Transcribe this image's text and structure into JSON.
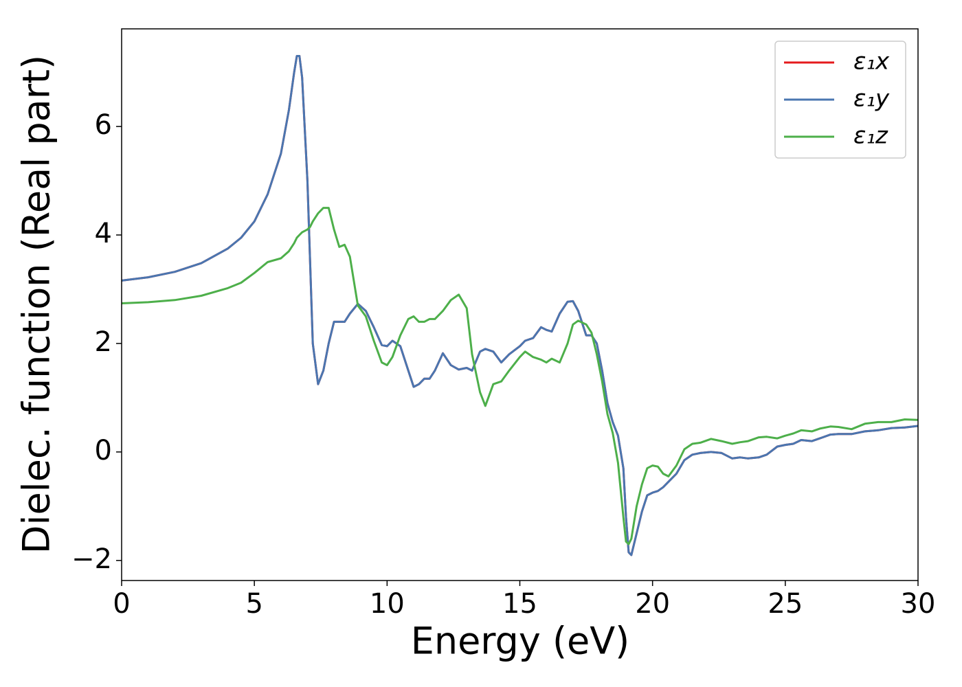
{
  "chart_data": {
    "type": "line",
    "xlabel": "Energy (eV)",
    "ylabel": "Dielec. function (Real part)",
    "x": [
      0,
      1,
      2,
      3,
      4,
      4.5,
      5,
      5.5,
      6,
      6.3,
      6.5,
      6.6,
      6.7,
      6.8,
      7.0,
      7.1,
      7.2,
      7.4,
      7.6,
      7.8,
      8.0,
      8.2,
      8.4,
      8.6,
      8.9,
      9.2,
      9.5,
      9.8,
      10.0,
      10.2,
      10.5,
      10.8,
      11.0,
      11.2,
      11.4,
      11.6,
      11.8,
      12.1,
      12.4,
      12.7,
      13.0,
      13.2,
      13.5,
      13.7,
      14.0,
      14.3,
      14.6,
      15.0,
      15.2,
      15.5,
      15.8,
      16.0,
      16.2,
      16.5,
      16.8,
      17.0,
      17.2,
      17.5,
      17.7,
      17.9,
      18.1,
      18.3,
      18.5,
      18.7,
      18.9,
      19.0,
      19.1,
      19.2,
      19.4,
      19.6,
      19.8,
      20.0,
      20.2,
      20.4,
      20.6,
      20.9,
      21.2,
      21.5,
      21.8,
      22.2,
      22.6,
      23.0,
      23.3,
      23.6,
      24.0,
      24.3,
      24.7,
      25.0,
      25.3,
      25.6,
      26.0,
      26.3,
      26.7,
      27.0,
      27.5,
      28.0,
      28.5,
      29.0,
      29.5,
      30.0
    ],
    "series": [
      {
        "name": "ε₁x",
        "color": "#e41a1c",
        "values": [
          3.16,
          3.22,
          3.32,
          3.48,
          3.75,
          3.95,
          4.25,
          4.75,
          5.5,
          6.3,
          7.0,
          7.3,
          7.3,
          6.9,
          5.0,
          3.5,
          2.0,
          1.25,
          1.5,
          2.0,
          2.4,
          2.4,
          2.4,
          2.55,
          2.73,
          2.6,
          2.3,
          1.97,
          1.95,
          2.05,
          1.95,
          1.5,
          1.2,
          1.25,
          1.35,
          1.35,
          1.5,
          1.82,
          1.6,
          1.52,
          1.55,
          1.5,
          1.85,
          1.9,
          1.85,
          1.65,
          1.8,
          1.95,
          2.05,
          2.1,
          2.3,
          2.25,
          2.22,
          2.55,
          2.77,
          2.78,
          2.6,
          2.15,
          2.15,
          2.0,
          1.5,
          0.9,
          0.55,
          0.3,
          -0.3,
          -1.2,
          -1.85,
          -1.9,
          -1.5,
          -1.1,
          -0.8,
          -0.75,
          -0.72,
          -0.65,
          -0.55,
          -0.4,
          -0.15,
          -0.05,
          -0.02,
          0.0,
          -0.02,
          -0.12,
          -0.1,
          -0.12,
          -0.1,
          -0.05,
          0.1,
          0.13,
          0.15,
          0.22,
          0.2,
          0.25,
          0.32,
          0.33,
          0.33,
          0.38,
          0.4,
          0.44,
          0.45,
          0.48
        ]
      },
      {
        "name": "ε₁y",
        "color": "#4a76b0",
        "values": [
          3.16,
          3.22,
          3.32,
          3.48,
          3.75,
          3.95,
          4.25,
          4.75,
          5.5,
          6.3,
          7.0,
          7.3,
          7.3,
          6.9,
          5.0,
          3.5,
          2.0,
          1.25,
          1.5,
          2.0,
          2.4,
          2.4,
          2.4,
          2.55,
          2.73,
          2.6,
          2.3,
          1.97,
          1.95,
          2.05,
          1.95,
          1.5,
          1.2,
          1.25,
          1.35,
          1.35,
          1.5,
          1.82,
          1.6,
          1.52,
          1.55,
          1.5,
          1.85,
          1.9,
          1.85,
          1.65,
          1.8,
          1.95,
          2.05,
          2.1,
          2.3,
          2.25,
          2.22,
          2.55,
          2.77,
          2.78,
          2.6,
          2.15,
          2.15,
          2.0,
          1.5,
          0.9,
          0.55,
          0.3,
          -0.3,
          -1.2,
          -1.85,
          -1.9,
          -1.5,
          -1.1,
          -0.8,
          -0.75,
          -0.72,
          -0.65,
          -0.55,
          -0.4,
          -0.15,
          -0.05,
          -0.02,
          0.0,
          -0.02,
          -0.12,
          -0.1,
          -0.12,
          -0.1,
          -0.05,
          0.1,
          0.13,
          0.15,
          0.22,
          0.2,
          0.25,
          0.32,
          0.33,
          0.33,
          0.38,
          0.4,
          0.44,
          0.45,
          0.48
        ]
      },
      {
        "name": "ε₁z",
        "color": "#4daf4a",
        "values": [
          2.74,
          2.76,
          2.8,
          2.88,
          3.02,
          3.12,
          3.3,
          3.5,
          3.57,
          3.7,
          3.85,
          3.95,
          4.0,
          4.05,
          4.1,
          4.15,
          4.25,
          4.4,
          4.5,
          4.5,
          4.1,
          3.78,
          3.82,
          3.6,
          2.7,
          2.5,
          2.05,
          1.65,
          1.6,
          1.75,
          2.15,
          2.45,
          2.5,
          2.4,
          2.4,
          2.45,
          2.45,
          2.6,
          2.8,
          2.9,
          2.65,
          1.8,
          1.1,
          0.85,
          1.25,
          1.3,
          1.5,
          1.75,
          1.85,
          1.75,
          1.7,
          1.65,
          1.72,
          1.65,
          2.0,
          2.35,
          2.42,
          2.35,
          2.2,
          1.8,
          1.3,
          0.7,
          0.35,
          -0.2,
          -1.2,
          -1.65,
          -1.7,
          -1.6,
          -1.0,
          -0.6,
          -0.3,
          -0.25,
          -0.27,
          -0.4,
          -0.45,
          -0.25,
          0.05,
          0.15,
          0.17,
          0.24,
          0.2,
          0.15,
          0.18,
          0.2,
          0.27,
          0.28,
          0.25,
          0.3,
          0.34,
          0.4,
          0.38,
          0.43,
          0.47,
          0.46,
          0.42,
          0.52,
          0.55,
          0.55,
          0.6,
          0.59
        ]
      }
    ],
    "xlim": [
      0,
      30
    ],
    "xticks": [
      0,
      5,
      10,
      15,
      20,
      25,
      30
    ],
    "ylim": [
      -2.37,
      7.8
    ],
    "yticks": [
      {
        "value": -2,
        "label": "−2"
      },
      0,
      2,
      4,
      6
    ],
    "legend": "upper right",
    "grid": false
  }
}
